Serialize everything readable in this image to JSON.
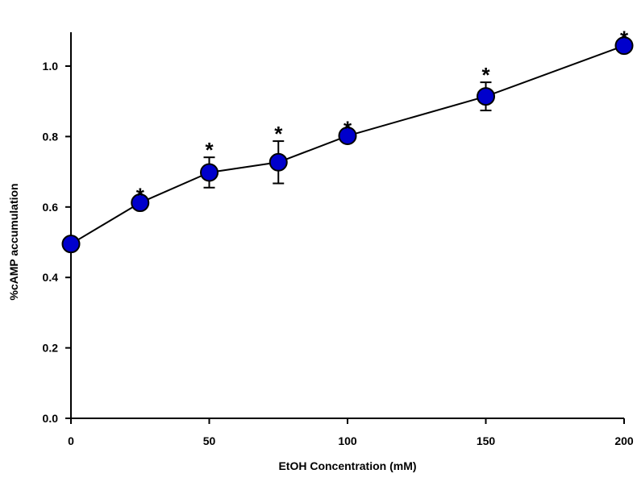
{
  "chart_data": {
    "type": "scatter",
    "xlabel": "EtOH Concentration (mM)",
    "ylabel": "%cAMP accumulation",
    "xlim": [
      0,
      200
    ],
    "ylim": [
      0,
      1.1
    ],
    "x_ticks": [
      "0",
      "50",
      "100",
      "150",
      "200"
    ],
    "y_ticks": [
      "0.0",
      "0.2",
      "0.4",
      "0.6",
      "0.8",
      "1.0"
    ],
    "grid": false,
    "connected_line": true,
    "significance_marker": "*",
    "series": [
      {
        "x": [
          0,
          25,
          50,
          75,
          100,
          150,
          200
        ],
        "y": [
          0.495,
          0.612,
          0.698,
          0.727,
          0.802,
          0.914,
          1.058
        ],
        "error": [
          0,
          0,
          0.043,
          0.06,
          0,
          0.04,
          0
        ],
        "significant": [
          false,
          true,
          true,
          true,
          true,
          true,
          true
        ]
      }
    ],
    "colors": {
      "marker_fill": "#0000cc",
      "marker_stroke": "#000000",
      "line": "#000000"
    }
  }
}
